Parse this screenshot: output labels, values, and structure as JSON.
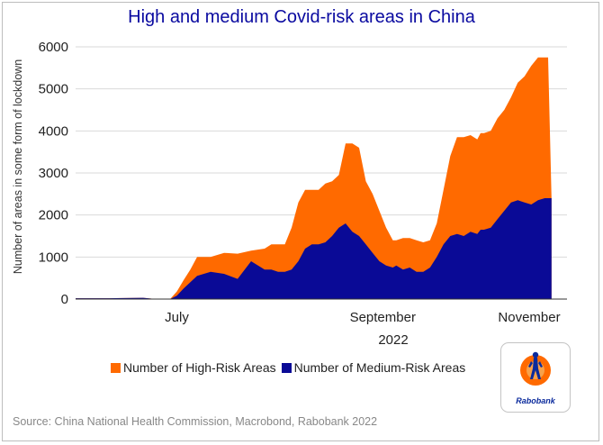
{
  "chart_data": {
    "type": "area",
    "title": "High and medium Covid-risk areas in China",
    "xlabel": "2022",
    "ylabel": "Number of areas in some form of lockdown",
    "ylim": [
      0,
      6000
    ],
    "yticks": [
      "0",
      "1000",
      "2000",
      "3000",
      "4000",
      "5000",
      "6000"
    ],
    "xticks": [
      "July",
      "September",
      "November"
    ],
    "x_range_days": [
      0,
      141
    ],
    "x_tick_days": [
      30,
      91,
      152
    ],
    "x_day_origin": "2022-06-01",
    "stacked": true,
    "series": [
      {
        "name": "Number of Medium-Risk Areas",
        "color": "#0a0a96",
        "x": [
          0,
          10,
          20,
          24,
          28,
          30,
          32,
          34,
          36,
          40,
          44,
          48,
          52,
          56,
          58,
          60,
          62,
          64,
          66,
          68,
          70,
          72,
          74,
          76,
          78,
          80,
          82,
          84,
          86,
          88,
          90,
          92,
          94,
          95,
          97,
          99,
          101,
          103,
          105,
          107,
          109,
          111,
          113,
          115,
          117,
          119,
          120,
          121,
          123,
          125,
          127,
          129,
          131,
          133,
          135,
          137,
          139,
          140,
          141
        ],
        "values": [
          20,
          20,
          30,
          0,
          0,
          80,
          250,
          400,
          550,
          650,
          600,
          480,
          900,
          700,
          700,
          650,
          650,
          700,
          900,
          1200,
          1300,
          1300,
          1350,
          1500,
          1700,
          1800,
          1600,
          1500,
          1300,
          1100,
          900,
          800,
          750,
          800,
          700,
          750,
          650,
          650,
          750,
          1000,
          1300,
          1500,
          1550,
          1500,
          1600,
          1550,
          1650,
          1650,
          1700,
          1900,
          2100,
          2300,
          2350,
          2300,
          2250,
          2350,
          2400,
          2400,
          2400
        ]
      },
      {
        "name": "Number of High-Risk Areas",
        "color": "#ff6a00",
        "x": [
          0,
          10,
          20,
          24,
          28,
          30,
          32,
          34,
          36,
          40,
          44,
          48,
          52,
          56,
          58,
          60,
          62,
          64,
          66,
          68,
          70,
          72,
          74,
          76,
          78,
          80,
          82,
          84,
          86,
          88,
          90,
          92,
          94,
          95,
          97,
          99,
          101,
          103,
          105,
          107,
          109,
          111,
          113,
          115,
          117,
          119,
          120,
          121,
          123,
          125,
          127,
          129,
          131,
          133,
          135,
          137,
          139,
          140,
          141
        ],
        "values": [
          0,
          0,
          0,
          0,
          0,
          100,
          200,
          300,
          450,
          350,
          500,
          600,
          250,
          500,
          600,
          650,
          650,
          1000,
          1400,
          1400,
          1300,
          1300,
          1400,
          1300,
          1250,
          1900,
          2100,
          2100,
          1500,
          1400,
          1200,
          900,
          650,
          600,
          750,
          700,
          750,
          700,
          650,
          800,
          1300,
          1900,
          2300,
          2350,
          2300,
          2250,
          2300,
          2300,
          2300,
          2400,
          2400,
          2500,
          2800,
          3000,
          3300,
          3400,
          3350,
          3350,
          0
        ]
      }
    ],
    "legend_position": "bottom"
  },
  "legend": {
    "high_label": "Number of High-Risk Areas",
    "medium_label": "Number of Medium-Risk Areas"
  },
  "logo_text": "Rabobank",
  "source": "Source: China National Health Commission, Macrobond, Rabobank 2022",
  "colors": {
    "high": "#ff6a00",
    "medium": "#0a0a96",
    "title": "#0a0aa0"
  }
}
